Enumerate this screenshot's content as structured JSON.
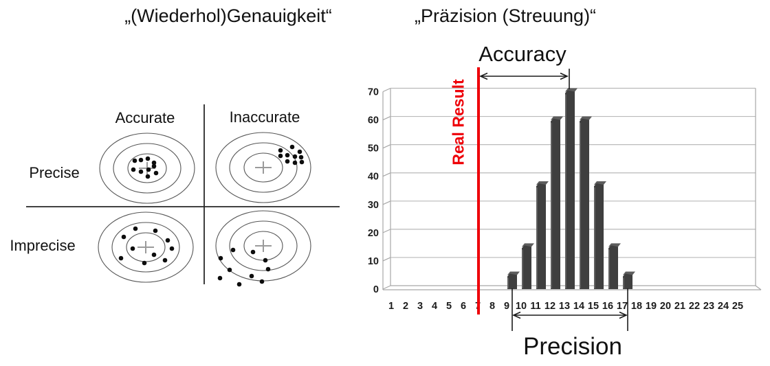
{
  "left_panel": {
    "title": "„(Wiederhol)Genauigkeit“",
    "column_labels": [
      "Accurate",
      "Inaccurate"
    ],
    "row_labels": [
      "Precise",
      "Imprecise"
    ],
    "targets": [
      {
        "name": "precise-accurate",
        "dots": [
          [
            -18,
            -11
          ],
          [
            -9,
            -12
          ],
          [
            1,
            -14
          ],
          [
            10,
            -8
          ],
          [
            -20,
            2
          ],
          [
            -9,
            5
          ],
          [
            2,
            2
          ],
          [
            10,
            -3
          ],
          [
            13,
            7
          ],
          [
            1,
            12
          ]
        ]
      },
      {
        "name": "precise-inaccurate",
        "dots": [
          [
            25,
            -25
          ],
          [
            42,
            -30
          ],
          [
            53,
            -23
          ],
          [
            25,
            -17
          ],
          [
            35,
            -18
          ],
          [
            46,
            -16
          ],
          [
            55,
            -15
          ],
          [
            35,
            -9
          ],
          [
            46,
            -7
          ],
          [
            56,
            -8
          ]
        ]
      },
      {
        "name": "imprecise-accurate",
        "dots": [
          [
            -15,
            -27
          ],
          [
            14,
            -24
          ],
          [
            -32,
            -15
          ],
          [
            32,
            -10
          ],
          [
            -19,
            2
          ],
          [
            38,
            2
          ],
          [
            -36,
            16
          ],
          [
            12,
            11
          ],
          [
            -2,
            23
          ],
          [
            28,
            19
          ]
        ]
      },
      {
        "name": "imprecise-inaccurate",
        "dots": [
          [
            -44,
            6
          ],
          [
            -15,
            9
          ],
          [
            -62,
            18
          ],
          [
            -49,
            35
          ],
          [
            3,
            21
          ],
          [
            7,
            34
          ],
          [
            -63,
            47
          ],
          [
            -35,
            56
          ],
          [
            -17,
            44
          ],
          [
            -2,
            52
          ]
        ]
      }
    ]
  },
  "right_panel": {
    "title": "„Präzision (Streuung)“",
    "annotations": {
      "accuracy": "Accuracy",
      "precision": "Precision",
      "real_result": "Real Result"
    }
  },
  "chart_data": {
    "type": "bar",
    "style": "3d-column",
    "title": "„Präzision (Streuung)“",
    "x": [
      9,
      10,
      11,
      12,
      13,
      14,
      15,
      16,
      17
    ],
    "values": [
      5,
      15,
      37,
      60,
      70,
      60,
      37,
      15,
      5
    ],
    "xticks": [
      1,
      2,
      3,
      4,
      5,
      6,
      7,
      8,
      9,
      10,
      11,
      12,
      13,
      14,
      15,
      16,
      17,
      18,
      19,
      20,
      21,
      22,
      23,
      24,
      25
    ],
    "yticks": [
      0,
      10,
      20,
      30,
      40,
      50,
      60,
      70
    ],
    "xlim": [
      1,
      25
    ],
    "ylim": [
      0,
      70
    ],
    "grid": true,
    "legend": false,
    "annotations": [
      {
        "label": "Real Result",
        "type": "vline",
        "x": 7
      },
      {
        "label": "Accuracy",
        "type": "range-arrow",
        "from": 7,
        "to": 13
      },
      {
        "label": "Precision",
        "type": "range-arrow",
        "from": 9,
        "to": 17
      }
    ]
  },
  "colors": {
    "bar": "#3f3f3f",
    "bar_cap": "#5d5d5d",
    "bar_highlight": "#6e6e6e",
    "red": "#ee0008",
    "grid": "#b9b9b9",
    "wall": "#a6a6a6",
    "ink": "#1a1a1a",
    "tick_text": "#1b1b1b",
    "ring": "#555555",
    "dot": "#0d0d0d",
    "plus": "#9a9a9a",
    "divider": "#262626"
  }
}
